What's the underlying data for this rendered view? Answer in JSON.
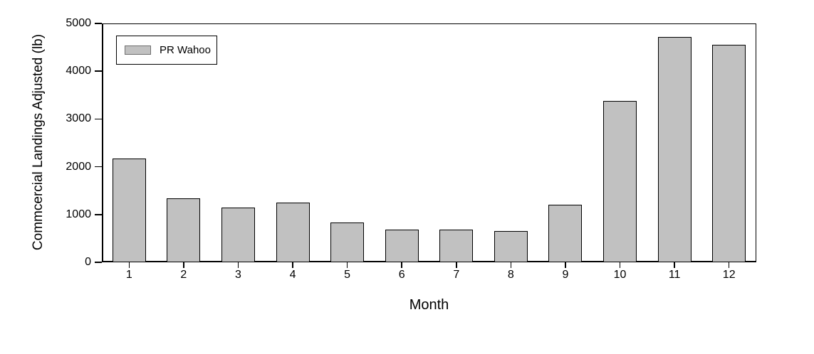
{
  "chart_data": {
    "type": "bar",
    "title": "",
    "categories": [
      "1",
      "2",
      "3",
      "4",
      "5",
      "6",
      "7",
      "8",
      "9",
      "10",
      "11",
      "12"
    ],
    "series": [
      {
        "name": "PR Wahoo",
        "values": [
          2180,
          1340,
          1140,
          1250,
          830,
          680,
          680,
          650,
          1210,
          3380,
          4720,
          4560
        ]
      }
    ],
    "xlabel": "Month",
    "ylabel": "Commcercial Landings Adjusted (lb)",
    "ylim": [
      0,
      5000
    ],
    "yticks": [
      0,
      1000,
      2000,
      3000,
      4000,
      5000
    ],
    "grid": false,
    "legend": {
      "position": "top-left",
      "entries": [
        "PR Wahoo"
      ]
    },
    "colors": {
      "bar_fill": "#c1c1c1",
      "bar_border": "#000000",
      "axis": "#000000",
      "text": "#000000",
      "background": "#ffffff"
    }
  }
}
